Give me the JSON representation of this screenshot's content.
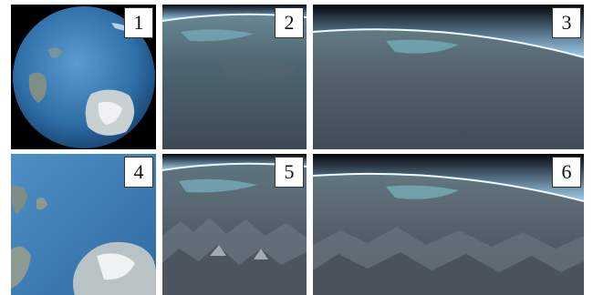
{
  "panels": [
    {
      "label": "1",
      "view": "globe-full"
    },
    {
      "label": "2",
      "view": "horizon-ocean"
    },
    {
      "label": "3",
      "view": "horizon-ocean-wide"
    },
    {
      "label": "4",
      "view": "globe-zoomed"
    },
    {
      "label": "5",
      "view": "horizon-terrain"
    },
    {
      "label": "6",
      "view": "horizon-terrain-wide"
    }
  ]
}
